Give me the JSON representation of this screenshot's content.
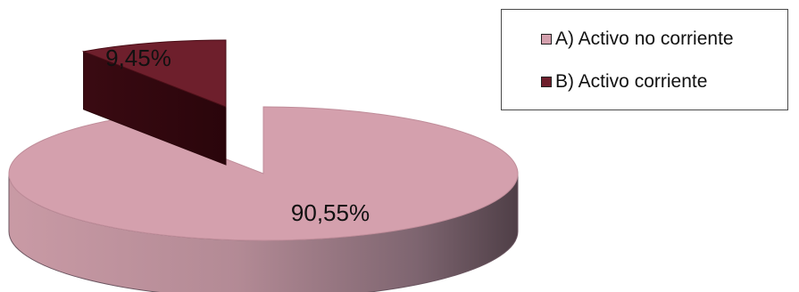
{
  "chart_data": {
    "type": "pie",
    "title": "",
    "categories": [
      "A) Activo no corriente",
      "B) Activo corriente"
    ],
    "values": [
      90.55,
      9.45
    ],
    "data_labels": [
      "90,55%",
      "9,45%"
    ],
    "colors": [
      "#d4a0ad",
      "#6e1f2c"
    ],
    "exploded_slice": "B) Activo corriente",
    "style_3d": true,
    "legend_placement": "top-right",
    "legend": [
      {
        "label": "A) Activo no corriente",
        "color": "#d4a0ad"
      },
      {
        "label": "B) Activo corriente",
        "color": "#6e1f2c"
      }
    ]
  }
}
